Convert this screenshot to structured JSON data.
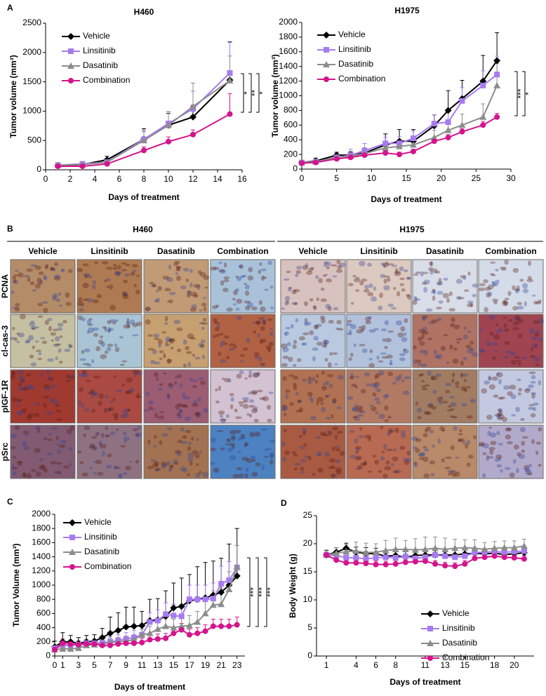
{
  "chart_data": [
    {
      "type": "line",
      "panel": "A",
      "title": "H460",
      "x_label": "Days of treatment",
      "y_label": "Tumor volume (mm³)",
      "x": [
        1,
        3,
        5,
        8,
        10,
        12,
        15
      ],
      "xlim": [
        0,
        16
      ],
      "xticks": [
        0,
        2,
        4,
        6,
        8,
        10,
        12,
        14,
        16
      ],
      "ylim": [
        0,
        2500
      ],
      "yticks": [
        0,
        500,
        1000,
        1500,
        2000,
        2500
      ],
      "legend": "upper left",
      "significance": [
        "*",
        "**",
        "*"
      ],
      "series": [
        {
          "name": "Vehicle",
          "color": "#000000",
          "marker": "diamond",
          "values": [
            70,
            90,
            170,
            520,
            760,
            900,
            1530
          ],
          "errors": [
            30,
            30,
            60,
            180,
            200,
            200,
            650
          ]
        },
        {
          "name": "Linsitinib",
          "color": "#a77bef",
          "marker": "square",
          "values": [
            80,
            100,
            130,
            520,
            790,
            1040,
            1650
          ],
          "errors": [
            20,
            20,
            40,
            150,
            200,
            300,
            520
          ]
        },
        {
          "name": "Dasatinib",
          "color": "#8c8c8c",
          "marker": "triangle",
          "values": [
            80,
            90,
            130,
            500,
            760,
            1080,
            1520
          ],
          "errors": [
            20,
            20,
            40,
            150,
            230,
            400,
            420
          ]
        },
        {
          "name": "Combination",
          "color": "#d4148c",
          "marker": "circle",
          "values": [
            60,
            60,
            100,
            330,
            480,
            600,
            950
          ],
          "errors": [
            10,
            10,
            30,
            60,
            80,
            80,
            350
          ]
        }
      ]
    },
    {
      "type": "line",
      "title": "H1975",
      "x_label": "Days of treatment",
      "y_label": "Tumor volume (mm³)",
      "x": [
        0,
        2,
        5,
        7,
        9,
        12,
        14,
        16,
        19,
        21,
        23,
        26,
        28
      ],
      "xlim": [
        0,
        30
      ],
      "xticks": [
        0,
        5,
        10,
        15,
        20,
        25,
        30
      ],
      "ylim": [
        0,
        2000
      ],
      "yticks": [
        0,
        200,
        400,
        600,
        800,
        1000,
        1200,
        1400,
        1600,
        1800,
        2000
      ],
      "legend": "upper left",
      "significance": [
        "***",
        "*"
      ],
      "series": [
        {
          "name": "Vehicle",
          "color": "#000000",
          "marker": "diamond",
          "values": [
            90,
            110,
            190,
            190,
            220,
            330,
            380,
            380,
            590,
            800,
            960,
            1200,
            1480
          ],
          "errors": [
            20,
            40,
            40,
            40,
            60,
            150,
            160,
            160,
            150,
            270,
            250,
            350,
            380
          ]
        },
        {
          "name": "Linsitinib",
          "color": "#a77bef",
          "marker": "square",
          "values": [
            90,
            100,
            160,
            190,
            250,
            350,
            350,
            420,
            620,
            640,
            930,
            1140,
            1290
          ],
          "errors": [
            20,
            30,
            40,
            80,
            100,
            80,
            90,
            100,
            120,
            150,
            180,
            200,
            250
          ]
        },
        {
          "name": "Dasatinib",
          "color": "#8c8c8c",
          "marker": "triangle",
          "values": [
            90,
            100,
            160,
            180,
            210,
            290,
            310,
            330,
            430,
            530,
            600,
            710,
            1140
          ],
          "errors": [
            20,
            30,
            30,
            60,
            80,
            60,
            70,
            80,
            100,
            120,
            150,
            180,
            300
          ]
        },
        {
          "name": "Combination",
          "color": "#d4148c",
          "marker": "circle",
          "values": [
            80,
            90,
            140,
            160,
            190,
            220,
            200,
            240,
            380,
            430,
            510,
            600,
            710
          ],
          "errors": [
            15,
            20,
            20,
            30,
            30,
            30,
            30,
            30,
            40,
            40,
            40,
            50,
            50
          ]
        }
      ]
    },
    {
      "type": "line",
      "panel": "C",
      "x_label": "Days of treatment",
      "y_label": "Tumor Volume (mm³)",
      "x": [
        0,
        1,
        2,
        3,
        4,
        5,
        6,
        7,
        8,
        9,
        10,
        11,
        12,
        13,
        14,
        15,
        16,
        17,
        18,
        19,
        20,
        21,
        22,
        23
      ],
      "xlim": [
        0,
        24
      ],
      "xticks": [
        0,
        1,
        3,
        5,
        7,
        9,
        11,
        13,
        15,
        17,
        19,
        21,
        23
      ],
      "ylim": [
        0,
        2000
      ],
      "yticks": [
        0,
        200,
        400,
        600,
        800,
        1000,
        1200,
        1400,
        1600,
        1800,
        2000
      ],
      "legend": "upper left",
      "significance": [
        "***",
        "***",
        "***"
      ],
      "series": [
        {
          "name": "Vehicle",
          "color": "#000000",
          "marker": "diamond",
          "values": [
            130,
            200,
            200,
            180,
            200,
            210,
            260,
            320,
            360,
            410,
            420,
            430,
            500,
            510,
            560,
            680,
            700,
            780,
            800,
            820,
            860,
            900,
            1000,
            1130
          ],
          "errors": [
            80,
            130,
            90,
            80,
            90,
            90,
            130,
            230,
            250,
            280,
            270,
            200,
            300,
            300,
            360,
            350,
            400,
            370,
            460,
            500,
            480,
            480,
            580,
            670
          ]
        },
        {
          "name": "Linsitinib",
          "color": "#a77bef",
          "marker": "square",
          "values": [
            110,
            150,
            150,
            160,
            180,
            180,
            190,
            200,
            220,
            240,
            260,
            300,
            480,
            500,
            590,
            570,
            560,
            800,
            800,
            800,
            810,
            1020,
            1070,
            1250
          ],
          "errors": [
            40,
            50,
            40,
            40,
            50,
            50,
            60,
            70,
            80,
            90,
            100,
            120,
            130,
            150,
            160,
            160,
            160,
            200,
            200,
            200,
            220,
            250,
            260,
            310
          ]
        },
        {
          "name": "Dasatinib",
          "color": "#8c8c8c",
          "marker": "triangle",
          "values": [
            90,
            100,
            100,
            110,
            150,
            160,
            170,
            190,
            200,
            210,
            230,
            300,
            320,
            380,
            420,
            400,
            420,
            430,
            480,
            600,
            720,
            730,
            940,
            1260
          ],
          "errors": [
            30,
            40,
            40,
            40,
            50,
            50,
            50,
            60,
            60,
            70,
            70,
            80,
            100,
            110,
            120,
            120,
            130,
            140,
            150,
            180,
            200,
            220,
            250,
            300
          ]
        },
        {
          "name": "Combination",
          "color": "#d4148c",
          "marker": "circle",
          "values": [
            90,
            180,
            170,
            160,
            170,
            170,
            150,
            150,
            170,
            180,
            180,
            190,
            230,
            240,
            250,
            320,
            370,
            300,
            320,
            350,
            420,
            420,
            420,
            440
          ],
          "errors": [
            40,
            60,
            50,
            50,
            50,
            50,
            50,
            50,
            60,
            60,
            60,
            60,
            70,
            70,
            70,
            80,
            90,
            80,
            80,
            90,
            100,
            100,
            100,
            110
          ]
        }
      ]
    },
    {
      "type": "line",
      "panel": "D",
      "x_label": "Days of treatment",
      "y_label": "Body Weight (g)",
      "x": [
        1,
        2,
        3,
        4,
        5,
        6,
        7,
        8,
        9,
        10,
        11,
        12,
        13,
        14,
        15,
        16,
        17,
        18,
        19,
        20,
        21
      ],
      "xlim": [
        0,
        22
      ],
      "xticks": [
        1,
        4,
        6,
        8,
        11,
        13,
        15,
        18,
        20
      ],
      "ylim": [
        0,
        25
      ],
      "yticks": [
        0,
        5,
        10,
        15,
        20,
        25
      ],
      "legend": "lower right",
      "series": [
        {
          "name": "Vehicle",
          "color": "#000000",
          "marker": "diamond",
          "values": [
            18,
            18.5,
            19.2,
            18.5,
            18.3,
            18.2,
            17.8,
            17.9,
            17.6,
            17.9,
            18,
            18,
            18,
            18,
            18.2,
            18.3,
            18.2,
            18.3,
            18.1,
            18.2,
            18.4
          ],
          "errors": [
            0.8,
            0.8,
            0.9,
            0.9,
            1,
            1,
            1,
            1,
            1,
            1,
            1,
            1,
            1,
            1,
            1,
            0.9,
            0.9,
            0.9,
            0.9,
            0.9,
            0.9
          ]
        },
        {
          "name": "Linsitinib",
          "color": "#a77bef",
          "marker": "square",
          "values": [
            18,
            17.9,
            17.5,
            17.5,
            17.3,
            17.5,
            17.6,
            17.5,
            17.7,
            17.4,
            17.6,
            18,
            17.8,
            17.6,
            17.8,
            18.4,
            18.5,
            18.6,
            18.5,
            18.6,
            18.7
          ],
          "errors": [
            0.5,
            0.5,
            0.5,
            0.5,
            0.5,
            0.5,
            0.5,
            0.5,
            0.5,
            0.5,
            0.5,
            0.5,
            0.5,
            0.5,
            0.5,
            0.5,
            0.5,
            0.5,
            0.5,
            0.5,
            0.5
          ]
        },
        {
          "name": "Dasatinib",
          "color": "#8c8c8c",
          "marker": "triangle",
          "values": [
            18,
            18.3,
            18.6,
            18.7,
            18.4,
            18.5,
            18.8,
            19,
            19,
            18.9,
            19,
            19.2,
            19,
            19.2,
            19.3,
            19.2,
            19,
            19.2,
            19.3,
            19.3,
            19.6
          ],
          "errors": [
            0.9,
            1,
            1.2,
            1.6,
            1.7,
            1.5,
            1.8,
            2,
            1.6,
            2,
            2.2,
            2,
            2,
            1.6,
            1.4,
            1.5,
            1.2,
            1.2,
            1.2,
            1.2,
            1.2
          ]
        },
        {
          "name": "Combination",
          "color": "#d4148c",
          "marker": "circle",
          "values": [
            18,
            17.1,
            16.6,
            16.6,
            16.5,
            16.3,
            16.3,
            16.4,
            16.7,
            16.8,
            16.9,
            16.4,
            16.1,
            16,
            16.4,
            17.4,
            17.6,
            17.8,
            17.6,
            17.5,
            17.3
          ],
          "errors": [
            0.4,
            0.6,
            0.6,
            0.6,
            0.6,
            0.6,
            0.6,
            0.6,
            0.6,
            0.6,
            0.6,
            0.6,
            0.6,
            0.6,
            0.6,
            0.6,
            0.6,
            0.6,
            0.6,
            0.6,
            0.6
          ]
        }
      ]
    }
  ],
  "figure_b": {
    "panel": "B",
    "rows": [
      "PCNA",
      "cl-cas-3",
      "pIGF-1R",
      "pSrc"
    ],
    "groups": [
      {
        "title": "H460",
        "columns": [
          "Vehicle",
          "Linsitinib",
          "Dasatinib",
          "Combination"
        ]
      },
      {
        "title": "H1975",
        "columns": [
          "Vehicle",
          "Linsitinib",
          "Dasatinib",
          "Combination"
        ]
      }
    ]
  }
}
